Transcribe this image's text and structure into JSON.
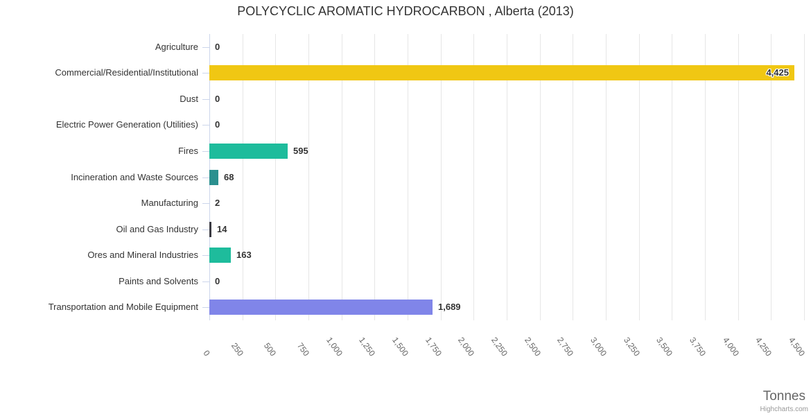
{
  "chart_data": {
    "type": "bar",
    "orientation": "horizontal",
    "title": "POLYCYCLIC AROMATIC HYDROCARBON , Alberta (2013)",
    "categories": [
      "Agriculture",
      "Commercial/Residential/Institutional",
      "Dust",
      "Electric Power Generation (Utilities)",
      "Fires",
      "Incineration and Waste Sources",
      "Manufacturing",
      "Oil and Gas Industry",
      "Ores and Mineral Industries",
      "Paints and Solvents",
      "Transportation and Mobile Equipment"
    ],
    "values": [
      0,
      4425,
      0,
      0,
      595,
      68,
      2,
      14,
      163,
      0,
      1689
    ],
    "value_labels": [
      "0",
      "4,425",
      "0",
      "0",
      "595",
      "68",
      "2",
      "14",
      "163",
      "0",
      "1,689"
    ],
    "bar_colors": [
      "#cccccc",
      "#f0c713",
      "#cccccc",
      "#cccccc",
      "#1ebc9c",
      "#2b908f",
      "#cccccc",
      "#3b3b43",
      "#1ebc9c",
      "#cccccc",
      "#8085e9"
    ],
    "axis": {
      "min": 0,
      "max": 4500,
      "tick_interval": 250,
      "tick_labels": [
        "0",
        "250",
        "500",
        "750",
        "1,000",
        "1,250",
        "1,500",
        "1,750",
        "2,000",
        "2,250",
        "2,500",
        "2,750",
        "3,000",
        "3,250",
        "3,500",
        "3,750",
        "4,000",
        "4,250",
        "4,500"
      ],
      "title": "Tonnes"
    },
    "grid": true,
    "legend": false,
    "credit": "Highcharts.com",
    "colors": {
      "grid_line": "#e6e6e6",
      "axis_line": "#ccd6eb",
      "label_text": "#333333",
      "tick_text": "#666666",
      "axis_title_text": "#666666",
      "credit_text": "#999999"
    }
  }
}
